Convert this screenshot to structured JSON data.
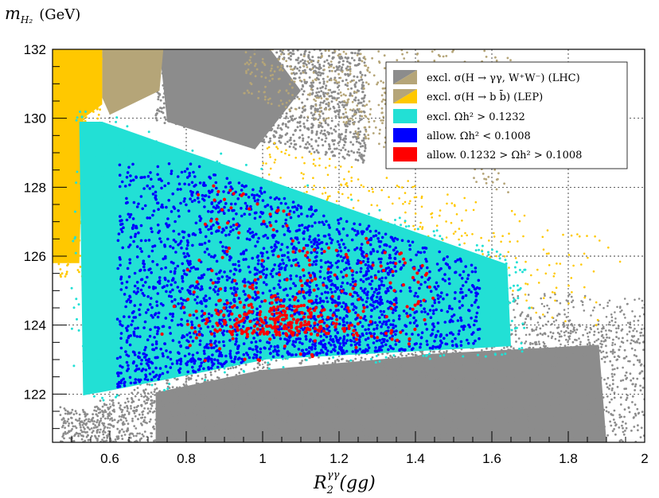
{
  "chart_data": {
    "type": "scatter",
    "title": "",
    "ylabel_text": "m",
    "ylabel_sub": "H₂",
    "ylabel_unit": "(GeV)",
    "xlabel_text": "R",
    "xlabel_sub": "2",
    "xlabel_sup": "γγ",
    "xlabel_arg": "(gg)",
    "xlim": [
      0.45,
      2.0
    ],
    "ylim": [
      120.6,
      132.0
    ],
    "x_ticks": [
      0.6,
      0.8,
      1,
      1.2,
      1.4,
      1.6,
      1.8,
      2
    ],
    "x_tick_labels": [
      "0.6",
      "0.8",
      "1",
      "1.2",
      "1.4",
      "1.6",
      "1.8",
      "2"
    ],
    "y_ticks": [
      122,
      124,
      126,
      128,
      130,
      132
    ],
    "y_tick_labels": [
      "122",
      "124",
      "126",
      "128",
      "130",
      "132"
    ],
    "grid": true,
    "legend_position": "top-right",
    "series": [
      {
        "name": "excl. σ(H → γγ, W⁺W⁻) (LHC)",
        "color": "#8c8c8c",
        "color2": "#b5a578",
        "region": "excluded by LHC rates"
      },
      {
        "name": "excl. σ(H → b b̄) (LEP)",
        "color": "#b5a578",
        "color2": "#ffc800",
        "region": "excluded by LEP"
      },
      {
        "name": "excl. Ωh² > 0.1232",
        "color": "#22e0d5",
        "region": "relic density too high"
      },
      {
        "name": "allow. Ωh² < 0.1008",
        "color": "#0000ff",
        "region": "allowed, under-abundant"
      },
      {
        "name": "allow. 0.1232 > Ωh² > 0.1008",
        "color": "#ff0000",
        "region": "allowed, correct relic density"
      }
    ],
    "regions": {
      "lhc_gray_low": {
        "x_range": [
          0.45,
          2.0
        ],
        "y_top_at_x": [
          [
            0.55,
            121.3
          ],
          [
            0.7,
            122.1
          ],
          [
            1.0,
            122.8
          ],
          [
            1.4,
            123.2
          ],
          [
            1.6,
            123.8
          ],
          [
            2.0,
            124.1
          ]
        ]
      },
      "lhc_gray_high": {
        "x_range": [
          0.55,
          1.4
        ],
        "y_range": [
          127.6,
          132.0
        ]
      },
      "cyan_band": {
        "x_range": [
          0.52,
          1.65
        ],
        "y_range": [
          121.8,
          129.9
        ]
      },
      "blue_core": {
        "x_range": [
          0.62,
          1.55
        ],
        "y_range": [
          122.8,
          128.6
        ]
      },
      "red_core": {
        "x_range": [
          0.8,
          1.5
        ],
        "y_range": [
          123.0,
          128.2
        ],
        "peak": [
          1.05,
          123.9
        ]
      }
    }
  }
}
